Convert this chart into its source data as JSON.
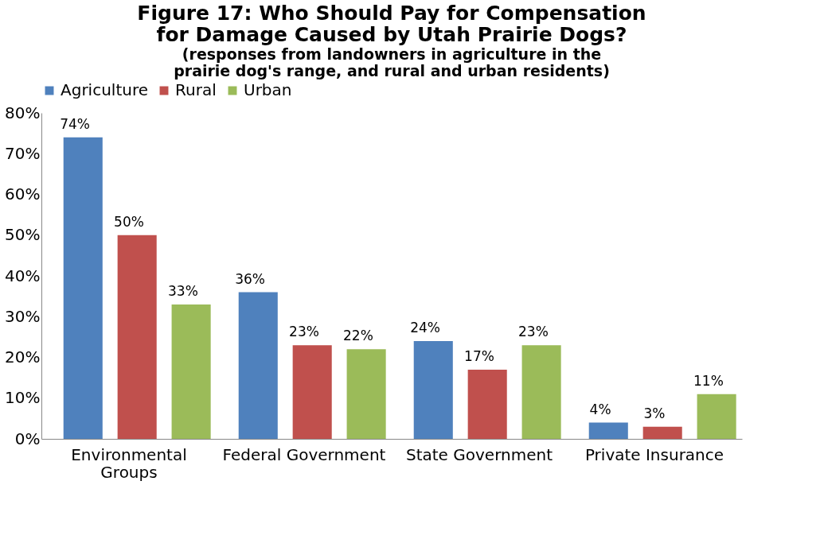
{
  "chart_data": {
    "type": "bar",
    "title": "Figure 17: Who Should Pay for Compensation for Damage Caused by Utah Prairie Dogs?",
    "subtitle": "(responses from landowners in agriculture in the prairie dog's range, and rural and urban residents)",
    "categories": [
      "Environmental Groups",
      "Federal Government",
      "State Government",
      "Private Insurance"
    ],
    "series": [
      {
        "name": "Agriculture",
        "color": "#4f81bd",
        "values": [
          74,
          36,
          24,
          4
        ],
        "value_labels": [
          "74%",
          "36%",
          "24%",
          "4%"
        ]
      },
      {
        "name": "Rural",
        "color": "#c0504d",
        "values": [
          50,
          23,
          17,
          3
        ],
        "value_labels": [
          "50%",
          "23%",
          "17%",
          "3%"
        ]
      },
      {
        "name": "Urban",
        "color": "#9bbb59",
        "values": [
          33,
          22,
          23,
          11
        ],
        "value_labels": [
          "33%",
          "22%",
          "23%",
          "11%"
        ]
      }
    ],
    "ylim": [
      0,
      80
    ],
    "yticks": [
      {
        "value": 0,
        "label": "0%"
      },
      {
        "value": 10,
        "label": "10%"
      },
      {
        "value": 20,
        "label": "20%"
      },
      {
        "value": 30,
        "label": "30%"
      },
      {
        "value": 40,
        "label": "40%"
      },
      {
        "value": 50,
        "label": "50%"
      },
      {
        "value": 60,
        "label": "60%"
      },
      {
        "value": 70,
        "label": "70%"
      },
      {
        "value": 80,
        "label": "80%"
      }
    ],
    "grid": false,
    "legend": "top"
  }
}
